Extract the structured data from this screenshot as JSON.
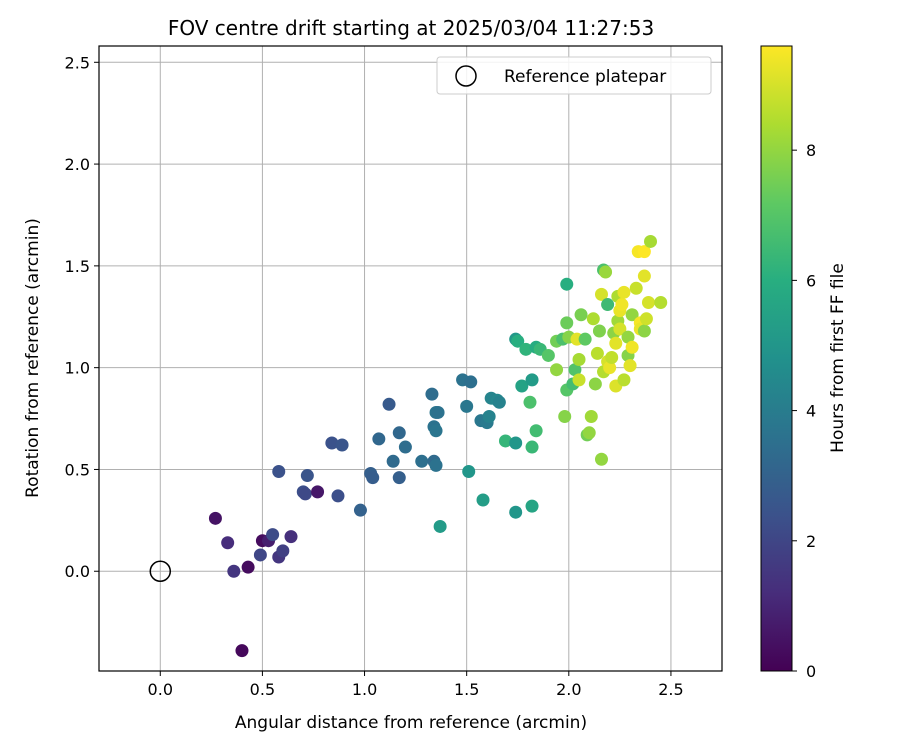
{
  "chart_data": {
    "type": "scatter",
    "title": "FOV centre drift starting at 2025/03/04 11:27:53",
    "xlabel": "Angular distance from reference (arcmin)",
    "ylabel": "Rotation from reference (arcmin)",
    "xlim": [
      -0.3,
      2.75
    ],
    "ylim": [
      -0.49,
      2.58
    ],
    "xticks": [
      0.0,
      0.5,
      1.0,
      1.5,
      2.0,
      2.5
    ],
    "xtick_labels": [
      "0.0",
      "0.5",
      "1.0",
      "1.5",
      "2.0",
      "2.5"
    ],
    "yticks": [
      0.0,
      0.5,
      1.0,
      1.5,
      2.0,
      2.5
    ],
    "ytick_labels": [
      "0.0",
      "0.5",
      "1.0",
      "1.5",
      "2.0",
      "2.5"
    ],
    "grid": true,
    "legend": {
      "placement": "top-right",
      "entries": [
        "Reference platepar"
      ]
    },
    "reference_point": {
      "x": 0.0,
      "y": 0.0,
      "marker": "open-circle"
    },
    "colorbar": {
      "label": "Hours from first FF file",
      "colormap": "viridis",
      "range": [
        0,
        9.6
      ],
      "ticks": [
        0,
        2,
        4,
        6,
        8
      ],
      "tick_labels": [
        "0",
        "2",
        "4",
        "6",
        "8"
      ]
    },
    "points": [
      {
        "x": 0.27,
        "y": 0.26,
        "c": 0.5
      },
      {
        "x": 0.33,
        "y": 0.14,
        "c": 1.2
      },
      {
        "x": 0.36,
        "y": 0.0,
        "c": 1.5
      },
      {
        "x": 0.43,
        "y": 0.02,
        "c": 0.3
      },
      {
        "x": 0.4,
        "y": -0.39,
        "c": 0.2
      },
      {
        "x": 0.49,
        "y": 0.08,
        "c": 2.0
      },
      {
        "x": 0.5,
        "y": 0.15,
        "c": 0.3
      },
      {
        "x": 0.53,
        "y": 0.15,
        "c": 0.8
      },
      {
        "x": 0.55,
        "y": 0.18,
        "c": 2.2
      },
      {
        "x": 0.58,
        "y": 0.07,
        "c": 1.5
      },
      {
        "x": 0.6,
        "y": 0.1,
        "c": 1.8
      },
      {
        "x": 0.64,
        "y": 0.17,
        "c": 1.3
      },
      {
        "x": 0.58,
        "y": 0.49,
        "c": 2.4
      },
      {
        "x": 0.7,
        "y": 0.39,
        "c": 2.3
      },
      {
        "x": 0.71,
        "y": 0.38,
        "c": 2.1
      },
      {
        "x": 0.72,
        "y": 0.47,
        "c": 2.5
      },
      {
        "x": 0.77,
        "y": 0.39,
        "c": 0.6
      },
      {
        "x": 0.84,
        "y": 0.63,
        "c": 2.4
      },
      {
        "x": 0.87,
        "y": 0.37,
        "c": 2.3
      },
      {
        "x": 0.89,
        "y": 0.62,
        "c": 2.5
      },
      {
        "x": 0.98,
        "y": 0.3,
        "c": 3.0
      },
      {
        "x": 1.03,
        "y": 0.48,
        "c": 2.9
      },
      {
        "x": 1.04,
        "y": 0.46,
        "c": 2.8
      },
      {
        "x": 1.07,
        "y": 0.65,
        "c": 3.2
      },
      {
        "x": 1.12,
        "y": 0.82,
        "c": 2.7
      },
      {
        "x": 1.14,
        "y": 0.54,
        "c": 3.3
      },
      {
        "x": 1.17,
        "y": 0.68,
        "c": 3.2
      },
      {
        "x": 1.17,
        "y": 0.46,
        "c": 2.9
      },
      {
        "x": 1.2,
        "y": 0.61,
        "c": 3.4
      },
      {
        "x": 1.28,
        "y": 0.54,
        "c": 3.5
      },
      {
        "x": 1.33,
        "y": 0.87,
        "c": 3.4
      },
      {
        "x": 1.34,
        "y": 0.54,
        "c": 3.3
      },
      {
        "x": 1.34,
        "y": 0.71,
        "c": 3.6
      },
      {
        "x": 1.35,
        "y": 0.78,
        "c": 3.7
      },
      {
        "x": 1.35,
        "y": 0.69,
        "c": 3.7
      },
      {
        "x": 1.36,
        "y": 0.78,
        "c": 3.6
      },
      {
        "x": 1.35,
        "y": 0.52,
        "c": 3.6
      },
      {
        "x": 1.37,
        "y": 0.22,
        "c": 5.2
      },
      {
        "x": 1.48,
        "y": 0.94,
        "c": 3.6
      },
      {
        "x": 1.5,
        "y": 0.81,
        "c": 3.8
      },
      {
        "x": 1.52,
        "y": 0.93,
        "c": 3.5
      },
      {
        "x": 1.51,
        "y": 0.49,
        "c": 5.0
      },
      {
        "x": 1.57,
        "y": 0.74,
        "c": 3.8
      },
      {
        "x": 1.6,
        "y": 0.73,
        "c": 3.9
      },
      {
        "x": 1.61,
        "y": 0.76,
        "c": 4.2
      },
      {
        "x": 1.62,
        "y": 0.85,
        "c": 4.3
      },
      {
        "x": 1.65,
        "y": 0.84,
        "c": 4.4
      },
      {
        "x": 1.66,
        "y": 0.83,
        "c": 4.2
      },
      {
        "x": 1.58,
        "y": 0.35,
        "c": 5.3
      },
      {
        "x": 1.69,
        "y": 0.64,
        "c": 6.3
      },
      {
        "x": 1.74,
        "y": 0.29,
        "c": 5.0
      },
      {
        "x": 1.74,
        "y": 0.63,
        "c": 5.0
      },
      {
        "x": 1.74,
        "y": 1.14,
        "c": 5.1
      },
      {
        "x": 1.75,
        "y": 1.13,
        "c": 6.0
      },
      {
        "x": 1.77,
        "y": 0.91,
        "c": 5.5
      },
      {
        "x": 1.79,
        "y": 1.09,
        "c": 6.2
      },
      {
        "x": 1.81,
        "y": 0.83,
        "c": 6.8
      },
      {
        "x": 1.82,
        "y": 0.94,
        "c": 5.2
      },
      {
        "x": 1.82,
        "y": 0.32,
        "c": 5.6
      },
      {
        "x": 1.82,
        "y": 0.61,
        "c": 6.4
      },
      {
        "x": 1.84,
        "y": 0.69,
        "c": 6.6
      },
      {
        "x": 1.84,
        "y": 1.1,
        "c": 5.9
      },
      {
        "x": 1.86,
        "y": 1.09,
        "c": 6.4
      },
      {
        "x": 1.9,
        "y": 1.06,
        "c": 7.0
      },
      {
        "x": 1.94,
        "y": 1.13,
        "c": 7.5
      },
      {
        "x": 1.94,
        "y": 0.99,
        "c": 8.0
      },
      {
        "x": 1.97,
        "y": 1.14,
        "c": 6.8
      },
      {
        "x": 1.98,
        "y": 0.76,
        "c": 7.8
      },
      {
        "x": 1.99,
        "y": 1.22,
        "c": 7.4
      },
      {
        "x": 1.99,
        "y": 0.89,
        "c": 7.0
      },
      {
        "x": 1.99,
        "y": 1.41,
        "c": 6.0
      },
      {
        "x": 2.0,
        "y": 1.15,
        "c": 7.8
      },
      {
        "x": 2.02,
        "y": 0.92,
        "c": 6.6
      },
      {
        "x": 2.03,
        "y": 0.99,
        "c": 6.9
      },
      {
        "x": 2.04,
        "y": 1.14,
        "c": 9.2
      },
      {
        "x": 2.05,
        "y": 0.94,
        "c": 8.8
      },
      {
        "x": 2.05,
        "y": 1.04,
        "c": 8.3
      },
      {
        "x": 2.06,
        "y": 1.26,
        "c": 7.6
      },
      {
        "x": 2.08,
        "y": 1.14,
        "c": 7.2
      },
      {
        "x": 2.09,
        "y": 0.67,
        "c": 7.5
      },
      {
        "x": 2.1,
        "y": 0.68,
        "c": 8.0
      },
      {
        "x": 2.11,
        "y": 0.76,
        "c": 8.2
      },
      {
        "x": 2.12,
        "y": 1.24,
        "c": 8.4
      },
      {
        "x": 2.13,
        "y": 0.92,
        "c": 7.9
      },
      {
        "x": 2.14,
        "y": 1.07,
        "c": 8.6
      },
      {
        "x": 2.15,
        "y": 1.18,
        "c": 7.7
      },
      {
        "x": 2.16,
        "y": 0.55,
        "c": 8.0
      },
      {
        "x": 2.16,
        "y": 1.36,
        "c": 9.0
      },
      {
        "x": 2.17,
        "y": 0.98,
        "c": 8.5
      },
      {
        "x": 2.17,
        "y": 1.48,
        "c": 6.8
      },
      {
        "x": 2.18,
        "y": 1.47,
        "c": 8.1
      },
      {
        "x": 2.19,
        "y": 1.31,
        "c": 6.5
      },
      {
        "x": 2.19,
        "y": 1.03,
        "c": 9.0
      },
      {
        "x": 2.2,
        "y": 1.0,
        "c": 9.3
      },
      {
        "x": 2.21,
        "y": 1.05,
        "c": 8.7
      },
      {
        "x": 2.22,
        "y": 1.17,
        "c": 7.9
      },
      {
        "x": 2.23,
        "y": 0.91,
        "c": 9.1
      },
      {
        "x": 2.23,
        "y": 1.12,
        "c": 9.2
      },
      {
        "x": 2.24,
        "y": 1.35,
        "c": 8.4
      },
      {
        "x": 2.24,
        "y": 1.23,
        "c": 8.2
      },
      {
        "x": 2.25,
        "y": 1.28,
        "c": 9.3
      },
      {
        "x": 2.25,
        "y": 1.19,
        "c": 9.0
      },
      {
        "x": 2.26,
        "y": 1.31,
        "c": 9.4
      },
      {
        "x": 2.27,
        "y": 1.37,
        "c": 9.3
      },
      {
        "x": 2.27,
        "y": 0.94,
        "c": 8.6
      },
      {
        "x": 2.29,
        "y": 1.15,
        "c": 8.0
      },
      {
        "x": 2.29,
        "y": 1.06,
        "c": 7.8
      },
      {
        "x": 2.3,
        "y": 1.01,
        "c": 9.2
      },
      {
        "x": 2.31,
        "y": 1.1,
        "c": 9.4
      },
      {
        "x": 2.31,
        "y": 1.26,
        "c": 8.0
      },
      {
        "x": 2.33,
        "y": 1.39,
        "c": 8.8
      },
      {
        "x": 2.34,
        "y": 1.57,
        "c": 9.5
      },
      {
        "x": 2.35,
        "y": 1.22,
        "c": 9.5
      },
      {
        "x": 2.35,
        "y": 1.19,
        "c": 9.3
      },
      {
        "x": 2.37,
        "y": 1.57,
        "c": 9.6
      },
      {
        "x": 2.37,
        "y": 1.18,
        "c": 7.9
      },
      {
        "x": 2.37,
        "y": 1.45,
        "c": 9.2
      },
      {
        "x": 2.38,
        "y": 1.24,
        "c": 8.9
      },
      {
        "x": 2.39,
        "y": 1.32,
        "c": 9.0
      },
      {
        "x": 2.4,
        "y": 1.62,
        "c": 8.3
      },
      {
        "x": 2.45,
        "y": 1.32,
        "c": 8.5
      }
    ]
  }
}
